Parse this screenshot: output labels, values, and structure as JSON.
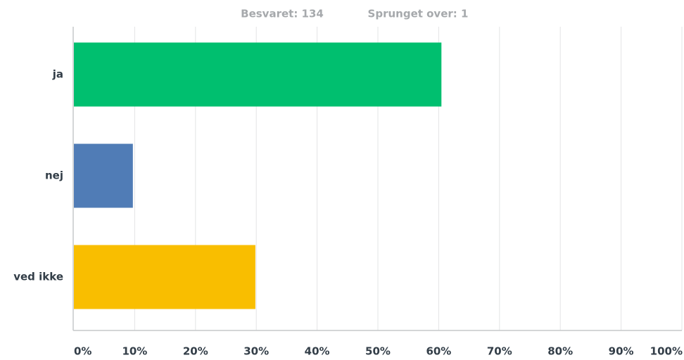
{
  "chart_data": {
    "type": "bar",
    "orientation": "horizontal",
    "annotations": [
      "Besvaret: 134",
      "Sprunget over: 1"
    ],
    "categories": [
      "ja",
      "nej",
      "ved ikke"
    ],
    "values": [
      60.45,
      9.7,
      29.85
    ],
    "colors": [
      "#00bf6f",
      "#507cb6",
      "#f9be00"
    ],
    "xlim": [
      0,
      100
    ],
    "xticks": [
      {
        "value": 0,
        "label": "0%"
      },
      {
        "value": 10,
        "label": "10%"
      },
      {
        "value": 20,
        "label": "20%"
      },
      {
        "value": 30,
        "label": "30%"
      },
      {
        "value": 40,
        "label": "40%"
      },
      {
        "value": 50,
        "label": "50%"
      },
      {
        "value": 60,
        "label": "60%"
      },
      {
        "value": 70,
        "label": "70%"
      },
      {
        "value": 80,
        "label": "80%"
      },
      {
        "value": 90,
        "label": "90%"
      },
      {
        "value": 100,
        "label": "100%"
      }
    ],
    "grid": true
  }
}
